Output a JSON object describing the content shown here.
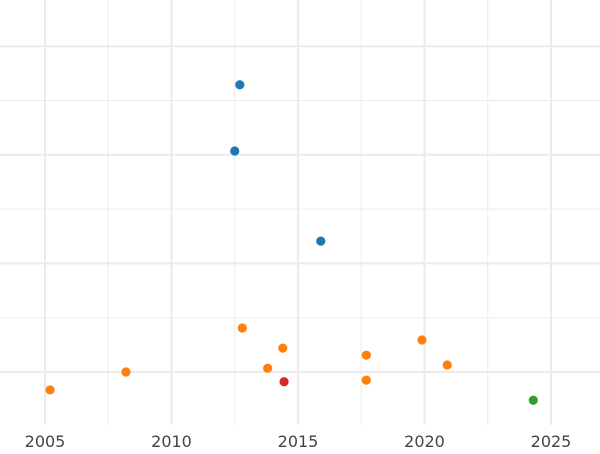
{
  "chart_data": {
    "type": "scatter",
    "title": "",
    "xlabel": "",
    "ylabel": "",
    "xlim": [
      2000.0,
      2026.9
    ],
    "ylim": [
      -0.98,
      6.85
    ],
    "x_ticks": [
      2005,
      2010,
      2015,
      2020,
      2025
    ],
    "x_tick_labels": [
      "2005",
      "2010",
      "2015",
      "2020",
      "2025"
    ],
    "y_gridlines_major": [
      0,
      2,
      4,
      6
    ],
    "y_gridlines_minor": [
      1,
      3,
      5
    ],
    "y_tick_labels_visible": false,
    "grid": true,
    "colors": {
      "blue": "#1f77b4",
      "orange": "#ff7f0e",
      "red": "#d62728",
      "green": "#2ca02c",
      "grid": "#ebebeb"
    },
    "points": [
      {
        "x": 2012.7,
        "y": 5.29,
        "color": "#1f77b4"
      },
      {
        "x": 2012.5,
        "y": 4.07,
        "color": "#1f77b4"
      },
      {
        "x": 2015.9,
        "y": 2.41,
        "color": "#1f77b4"
      },
      {
        "x": 2012.8,
        "y": 0.81,
        "color": "#ff7f0e"
      },
      {
        "x": 2014.4,
        "y": 0.44,
        "color": "#ff7f0e"
      },
      {
        "x": 2013.8,
        "y": 0.07,
        "color": "#ff7f0e"
      },
      {
        "x": 2008.2,
        "y": 0.0,
        "color": "#ff7f0e"
      },
      {
        "x": 2005.2,
        "y": -0.33,
        "color": "#ff7f0e"
      },
      {
        "x": 2014.45,
        "y": -0.18,
        "color": "#d62728"
      },
      {
        "x": 2017.7,
        "y": 0.31,
        "color": "#ff7f0e"
      },
      {
        "x": 2017.7,
        "y": -0.15,
        "color": "#ff7f0e"
      },
      {
        "x": 2019.9,
        "y": 0.59,
        "color": "#ff7f0e"
      },
      {
        "x": 2020.9,
        "y": 0.13,
        "color": "#ff7f0e"
      },
      {
        "x": 2024.3,
        "y": -0.52,
        "color": "#2ca02c"
      }
    ]
  }
}
